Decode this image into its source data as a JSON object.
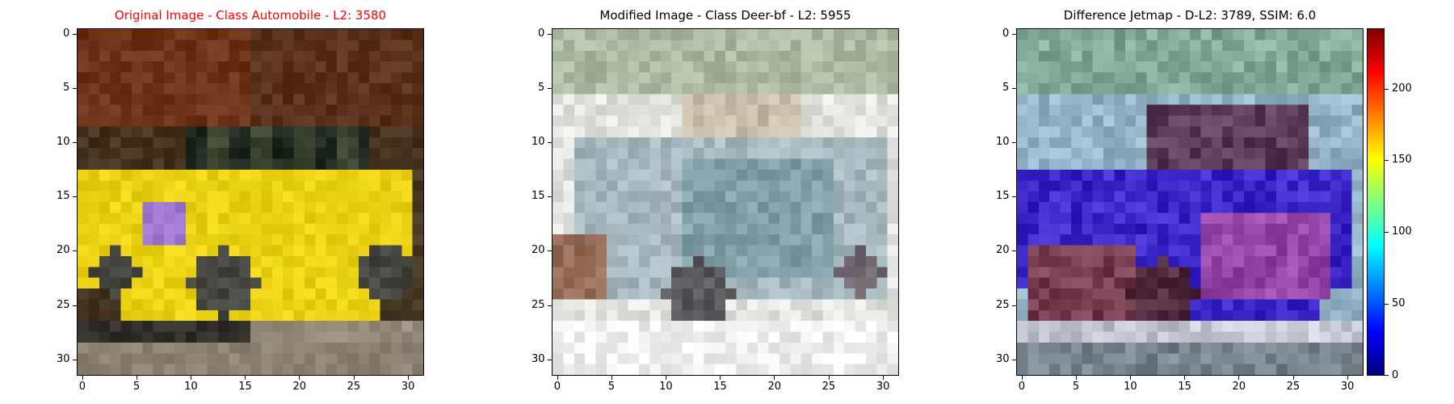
{
  "panels": [
    {
      "id": "original",
      "title": "Original Image - Class Automobile - L2: 3580",
      "title_color": "#ff0000"
    },
    {
      "id": "modified",
      "title": "Modified Image - Class Deer-bf - L2: 5955",
      "title_color": "#000000"
    },
    {
      "id": "difference",
      "title": "Difference Jetmap - D-L2: 3789, SSIM: 6.0",
      "title_color": "#000000"
    }
  ],
  "axis_ticks": [
    "0",
    "5",
    "10",
    "15",
    "20",
    "25",
    "30"
  ],
  "colorbar": {
    "ticks": [
      "0",
      "50",
      "100",
      "150",
      "200"
    ],
    "colors": [
      "#00007f",
      "#0000ff",
      "#007fff",
      "#00ffff",
      "#7fff7f",
      "#ffff00",
      "#ff7f00",
      "#ff0000",
      "#7f0000"
    ]
  }
}
